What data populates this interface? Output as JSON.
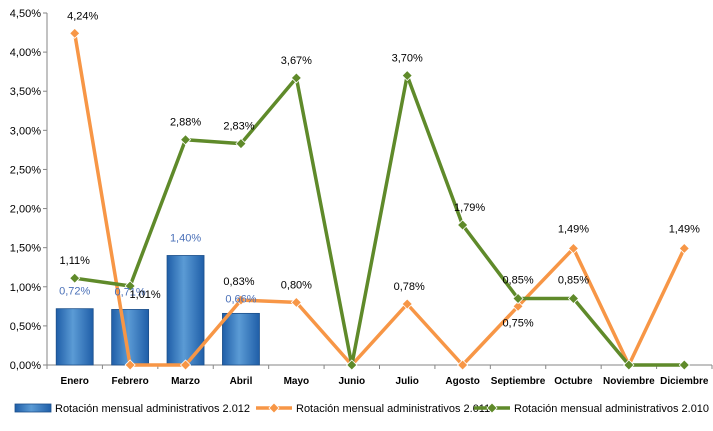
{
  "chart_data": {
    "type": "bar+line",
    "categories": [
      "Enero",
      "Febrero",
      "Marzo",
      "Abril",
      "Mayo",
      "Junio",
      "Julio",
      "Agosto",
      "Septiembre",
      "Octubre",
      "Noviembre",
      "Diciembre"
    ],
    "y_ticks": [
      "0,00%",
      "0,50%",
      "1,00%",
      "1,50%",
      "2,00%",
      "2,50%",
      "3,00%",
      "3,50%",
      "4,00%",
      "4,50%"
    ],
    "ylim": [
      0,
      4.5
    ],
    "grid": false,
    "legend_position": "bottom",
    "series": [
      {
        "name": "Rotación mensual administrativos 2.012",
        "kind": "bar",
        "color": "#2e75c5",
        "label_color": "#4a70b8",
        "values": [
          0.72,
          0.71,
          1.4,
          0.66,
          null,
          null,
          null,
          null,
          null,
          null,
          null,
          null
        ],
        "labels": [
          "0,72%",
          "0,71%",
          "1,40%",
          "0,66%",
          "",
          "",
          "",
          "",
          "",
          "",
          "",
          ""
        ]
      },
      {
        "name": "Rotación mensual administrativos 2.011",
        "kind": "line",
        "color": "#f79646",
        "label_color": "#000000",
        "values": [
          4.24,
          0,
          0,
          0.83,
          0.8,
          0,
          0.78,
          0,
          0.75,
          1.49,
          0,
          1.49
        ],
        "labels": [
          "4,24%",
          "",
          "",
          "0,83%",
          "0,80%",
          "",
          "0,78%",
          "",
          "0,75%",
          "1,49%",
          "",
          "1,49%"
        ]
      },
      {
        "name": "Rotación mensual administrativos 2.010",
        "kind": "line",
        "color": "#5f8a2a",
        "label_color": "#000000",
        "values": [
          1.11,
          1.01,
          2.88,
          2.83,
          3.67,
          0,
          3.7,
          1.79,
          0.85,
          0.85,
          0,
          0
        ],
        "labels": [
          "1,11%",
          "1,01%",
          "2,88%",
          "2,83%",
          "3,67%",
          "",
          "3,70%",
          "1,79%",
          "0,85%",
          "0,85%",
          "",
          ""
        ]
      }
    ]
  }
}
